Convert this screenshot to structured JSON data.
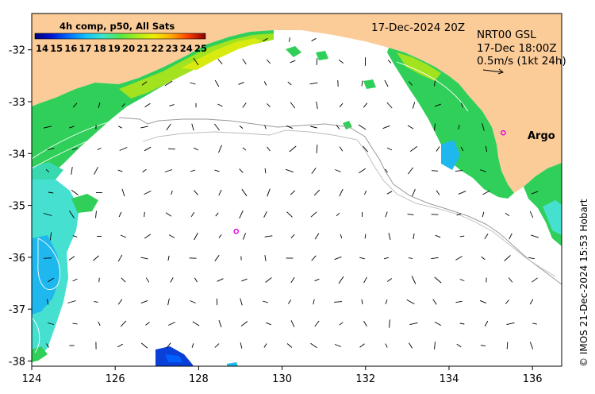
{
  "map": {
    "product_title": "4h comp, p50, All Sats",
    "date_label": "17-Dec-2024 20Z",
    "current_model": "NRT00 GSL",
    "current_time": "17-Dec 18:00Z",
    "vector_scale_label": "0.5m/s (1kt 24h)",
    "float_label": "Argo",
    "credit": "© IMOS 21-Dec-2024 15:53 Hobart",
    "lon_range": [
      124,
      136.7
    ],
    "lat_range": [
      -38.1,
      -31.3
    ],
    "x_ticks": [
      "124",
      "126",
      "128",
      "130",
      "132",
      "134",
      "136"
    ],
    "y_ticks": [
      "-32",
      "-33",
      "-34",
      "-35",
      "-36",
      "-37",
      "-38"
    ],
    "colorbar_labels": [
      "14",
      "15",
      "16",
      "17",
      "18",
      "19",
      "20",
      "21",
      "22",
      "23",
      "24",
      "25"
    ],
    "argo_floats": [
      {
        "lon": 135.3,
        "lat": -33.6
      },
      {
        "lon": 128.9,
        "lat": -35.5
      }
    ],
    "colors": {
      "land": "#fbcb98",
      "ocean": "#ffffff",
      "argo": "#e000e0",
      "isobath": "#9a9a9a"
    }
  }
}
